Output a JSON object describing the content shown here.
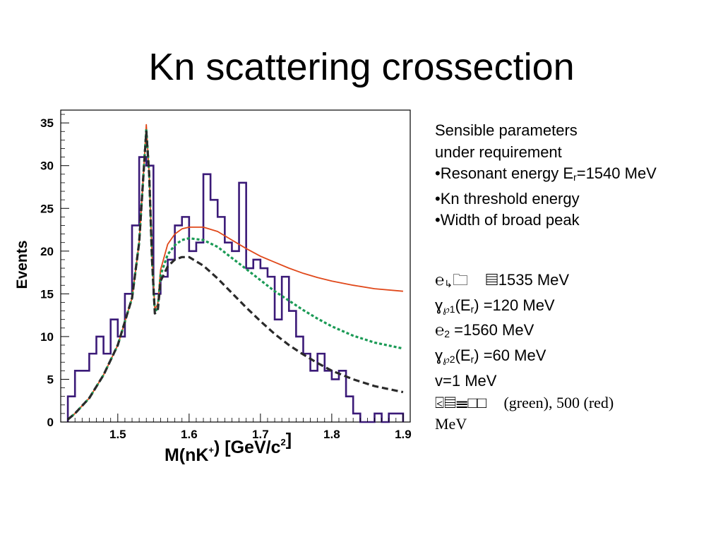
{
  "slide": {
    "title": "Kn scattering crossection"
  },
  "notes": {
    "line1": "Sensible parameters",
    "line2": "under requirement",
    "bullet1_pre": "•Resonant energy E",
    "bullet1_sub": "r",
    "bullet1_post": "=1540 MeV",
    "bullet2": "•Kn threshold energy",
    "bullet3": "•Width of broad peak"
  },
  "params": {
    "p1_glyph": "℮",
    "p1_sub": "↳",
    "p1_boxes": "🗀",
    "p1_value": "1535 MeV",
    "p2_glyph": "ɣ",
    "p2_sub_a": "℘1",
    "p2_mid": "(E",
    "p2_sub_b": "r",
    "p2_value": ") =120 MeV",
    "p3_glyph": "℮",
    "p3_sub": "2",
    "p3_value": " =1560 MeV",
    "p4_glyph": "ɣ",
    "p4_sub_a": "℘2",
    "p4_mid": "(E",
    "p4_sub_b": "r",
    "p4_value": ") =60 MeV",
    "p5": "v=1 MeV",
    "p6_glyphs": "⍃",
    "p6_text": "(green), 500 (red)",
    "p7": "MeV"
  },
  "chart_data": {
    "type": "line",
    "title": "",
    "xlabel": "M(nK⁺) [GeV/c²]",
    "xlabel_main": "M(nK",
    "xlabel_sup1": "+",
    "xlabel_mid": ") [GeV/c",
    "xlabel_sup2": "2",
    "xlabel_end": "]",
    "ylabel": "Events",
    "xlim": [
      1.42,
      1.91
    ],
    "ylim": [
      0,
      36.5
    ],
    "x_ticks": [
      1.5,
      1.6,
      1.7,
      1.8,
      1.9
    ],
    "x_tick_labels": [
      "1.5",
      "1.6",
      "1.7",
      "1.8",
      "1.9"
    ],
    "y_ticks": [
      0,
      5,
      10,
      15,
      20,
      25,
      30,
      35
    ],
    "y_tick_labels": [
      "0",
      "5",
      "10",
      "15",
      "20",
      "25",
      "30",
      "35"
    ],
    "histogram": {
      "color": "#3b1a78",
      "bin_edges": [
        1.43,
        1.44,
        1.45,
        1.46,
        1.47,
        1.48,
        1.49,
        1.5,
        1.51,
        1.52,
        1.53,
        1.54,
        1.55,
        1.56,
        1.57,
        1.58,
        1.59,
        1.6,
        1.61,
        1.62,
        1.63,
        1.64,
        1.65,
        1.66,
        1.67,
        1.68,
        1.69,
        1.7,
        1.71,
        1.72,
        1.73,
        1.74,
        1.75,
        1.76,
        1.77,
        1.78,
        1.79,
        1.8,
        1.81,
        1.82,
        1.83,
        1.84,
        1.85,
        1.86,
        1.87,
        1.88,
        1.89,
        1.9
      ],
      "counts": [
        3,
        6,
        6,
        8,
        10,
        8,
        12,
        10,
        15,
        23,
        31,
        30,
        15,
        17,
        19,
        23,
        24,
        20,
        21,
        29,
        26,
        24,
        21,
        20,
        28,
        18,
        19,
        18,
        17,
        12,
        17,
        13,
        10,
        8,
        6,
        8,
        6,
        5,
        6,
        3,
        1,
        0,
        0,
        1,
        0,
        1,
        1
      ]
    },
    "series": [
      {
        "name": "",
        "color": "#e0481a",
        "dash": "solid",
        "width": 1.8,
        "x": [
          1.43,
          1.44,
          1.46,
          1.48,
          1.5,
          1.52,
          1.53,
          1.536,
          1.54,
          1.544,
          1.548,
          1.552,
          1.556,
          1.56,
          1.57,
          1.58,
          1.59,
          1.6,
          1.62,
          1.64,
          1.66,
          1.68,
          1.7,
          1.72,
          1.74,
          1.76,
          1.78,
          1.8,
          1.83,
          1.86,
          1.9
        ],
        "y": [
          0.3,
          1.0,
          2.8,
          5.5,
          9.0,
          14.5,
          21.0,
          29.0,
          34.8,
          29.0,
          19.5,
          13.2,
          13.8,
          17.8,
          20.8,
          22.0,
          22.6,
          22.8,
          22.8,
          22.3,
          21.3,
          20.3,
          19.4,
          18.7,
          18.0,
          17.4,
          16.9,
          16.5,
          16.0,
          15.6,
          15.3
        ]
      },
      {
        "name": "",
        "color": "#1a9a55",
        "dash": "4 3",
        "width": 3.2,
        "x": [
          1.43,
          1.44,
          1.46,
          1.48,
          1.5,
          1.52,
          1.53,
          1.536,
          1.54,
          1.544,
          1.548,
          1.552,
          1.556,
          1.56,
          1.57,
          1.58,
          1.59,
          1.6,
          1.62,
          1.64,
          1.66,
          1.68,
          1.7,
          1.72,
          1.74,
          1.76,
          1.78,
          1.8,
          1.83,
          1.86,
          1.9
        ],
        "y": [
          0.3,
          1.0,
          2.8,
          5.5,
          9.0,
          14.5,
          21.0,
          29.0,
          34.3,
          29.0,
          19.0,
          12.9,
          13.3,
          17.2,
          19.6,
          20.7,
          21.3,
          21.5,
          21.3,
          20.5,
          19.2,
          17.9,
          16.6,
          15.3,
          14.2,
          13.1,
          12.1,
          11.2,
          10.1,
          9.3,
          8.6
        ]
      },
      {
        "name": "",
        "color": "#2a2a2a",
        "dash": "9 5",
        "width": 3.2,
        "x": [
          1.43,
          1.44,
          1.46,
          1.48,
          1.5,
          1.52,
          1.53,
          1.536,
          1.54,
          1.544,
          1.548,
          1.552,
          1.556,
          1.56,
          1.57,
          1.58,
          1.59,
          1.6,
          1.62,
          1.64,
          1.66,
          1.68,
          1.7,
          1.72,
          1.74,
          1.76,
          1.78,
          1.8,
          1.83,
          1.86,
          1.9
        ],
        "y": [
          0.3,
          1.0,
          2.8,
          5.5,
          9.0,
          14.5,
          21.0,
          29.0,
          34.0,
          29.0,
          19.0,
          12.7,
          13.0,
          16.5,
          18.2,
          19.0,
          19.3,
          19.3,
          18.3,
          16.8,
          15.1,
          13.4,
          11.8,
          10.3,
          9.0,
          7.9,
          6.9,
          6.0,
          5.0,
          4.2,
          3.5
        ]
      }
    ]
  }
}
